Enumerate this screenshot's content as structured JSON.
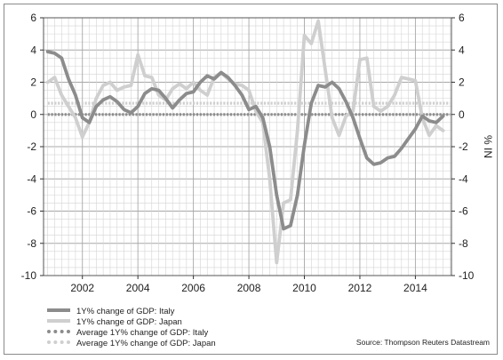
{
  "chart_data": {
    "type": "line",
    "title": "",
    "xlabel": "",
    "ylabel": "",
    "y2label": "% IN",
    "x_ticks": [
      2002,
      2004,
      2006,
      2008,
      2010,
      2012,
      2014
    ],
    "xlim": [
      2000.6,
      2015.3
    ],
    "ylim": [
      -10,
      6
    ],
    "y_ticks": [
      -10,
      -8,
      -6,
      -4,
      -2,
      0,
      2,
      4,
      6
    ],
    "grid": true,
    "legend_position": "bottom-left",
    "source": "Source: Thompson Reuters Datastream",
    "colors": {
      "italy": "#8c8c8c",
      "japan": "#cfcfcf"
    },
    "series": [
      {
        "name": "1Y% change of GDP: Italy",
        "style": "solid",
        "color": "#8c8c8c",
        "points": [
          [
            2000.75,
            3.9
          ],
          [
            2001.0,
            3.8
          ],
          [
            2001.25,
            3.5
          ],
          [
            2001.5,
            2.2
          ],
          [
            2001.75,
            1.2
          ],
          [
            2002.0,
            -0.2
          ],
          [
            2002.25,
            -0.5
          ],
          [
            2002.5,
            0.5
          ],
          [
            2002.75,
            0.9
          ],
          [
            2003.0,
            1.1
          ],
          [
            2003.25,
            0.8
          ],
          [
            2003.5,
            0.3
          ],
          [
            2003.75,
            0.1
          ],
          [
            2004.0,
            0.5
          ],
          [
            2004.25,
            1.3
          ],
          [
            2004.5,
            1.6
          ],
          [
            2004.75,
            1.5
          ],
          [
            2005.0,
            1.0
          ],
          [
            2005.25,
            0.4
          ],
          [
            2005.5,
            0.9
          ],
          [
            2005.75,
            1.3
          ],
          [
            2006.0,
            1.4
          ],
          [
            2006.25,
            2.0
          ],
          [
            2006.5,
            2.4
          ],
          [
            2006.75,
            2.2
          ],
          [
            2007.0,
            2.6
          ],
          [
            2007.25,
            2.3
          ],
          [
            2007.5,
            1.8
          ],
          [
            2007.75,
            1.2
          ],
          [
            2008.0,
            0.3
          ],
          [
            2008.25,
            0.5
          ],
          [
            2008.5,
            -0.2
          ],
          [
            2008.75,
            -2.0
          ],
          [
            2009.0,
            -5.0
          ],
          [
            2009.25,
            -7.1
          ],
          [
            2009.5,
            -6.9
          ],
          [
            2009.75,
            -5.0
          ],
          [
            2010.0,
            -1.9
          ],
          [
            2010.25,
            0.7
          ],
          [
            2010.5,
            1.8
          ],
          [
            2010.75,
            1.7
          ],
          [
            2011.0,
            2.0
          ],
          [
            2011.25,
            1.6
          ],
          [
            2011.5,
            0.8
          ],
          [
            2011.75,
            -0.2
          ],
          [
            2012.0,
            -1.5
          ],
          [
            2012.25,
            -2.7
          ],
          [
            2012.5,
            -3.1
          ],
          [
            2012.75,
            -3.0
          ],
          [
            2013.0,
            -2.7
          ],
          [
            2013.25,
            -2.6
          ],
          [
            2013.5,
            -2.1
          ],
          [
            2013.75,
            -1.5
          ],
          [
            2014.0,
            -0.9
          ],
          [
            2014.25,
            -0.1
          ],
          [
            2014.5,
            -0.4
          ],
          [
            2014.75,
            -0.5
          ],
          [
            2015.0,
            -0.1
          ]
        ]
      },
      {
        "name": "1Y% change of GDP: Japan",
        "style": "solid",
        "color": "#cfcfcf",
        "points": [
          [
            2000.75,
            2.0
          ],
          [
            2001.0,
            2.3
          ],
          [
            2001.25,
            1.2
          ],
          [
            2001.5,
            0.5
          ],
          [
            2001.75,
            -0.2
          ],
          [
            2002.0,
            -1.4
          ],
          [
            2002.25,
            -0.5
          ],
          [
            2002.5,
            1.0
          ],
          [
            2002.75,
            1.8
          ],
          [
            2003.0,
            2.0
          ],
          [
            2003.25,
            1.5
          ],
          [
            2003.5,
            1.7
          ],
          [
            2003.75,
            1.8
          ],
          [
            2004.0,
            3.7
          ],
          [
            2004.25,
            2.4
          ],
          [
            2004.5,
            2.3
          ],
          [
            2004.75,
            1.2
          ],
          [
            2005.0,
            0.9
          ],
          [
            2005.25,
            1.6
          ],
          [
            2005.5,
            1.9
          ],
          [
            2005.75,
            1.6
          ],
          [
            2006.0,
            2.0
          ],
          [
            2006.25,
            1.5
          ],
          [
            2006.5,
            1.2
          ],
          [
            2006.75,
            2.3
          ],
          [
            2007.0,
            2.6
          ],
          [
            2007.25,
            2.2
          ],
          [
            2007.5,
            1.9
          ],
          [
            2007.75,
            1.8
          ],
          [
            2008.0,
            1.5
          ],
          [
            2008.25,
            0.2
          ],
          [
            2008.5,
            -0.5
          ],
          [
            2008.75,
            -4.0
          ],
          [
            2009.0,
            -9.2
          ],
          [
            2009.25,
            -5.5
          ],
          [
            2009.5,
            -5.3
          ],
          [
            2009.75,
            -1.0
          ],
          [
            2010.0,
            4.9
          ],
          [
            2010.25,
            4.4
          ],
          [
            2010.5,
            5.8
          ],
          [
            2010.75,
            2.8
          ],
          [
            2011.0,
            -0.2
          ],
          [
            2011.25,
            -1.3
          ],
          [
            2011.5,
            -0.1
          ],
          [
            2011.75,
            0.2
          ],
          [
            2012.0,
            3.4
          ],
          [
            2012.25,
            3.5
          ],
          [
            2012.5,
            0.5
          ],
          [
            2012.75,
            0.2
          ],
          [
            2013.0,
            0.5
          ],
          [
            2013.25,
            1.2
          ],
          [
            2013.5,
            2.3
          ],
          [
            2013.75,
            2.2
          ],
          [
            2014.0,
            2.1
          ],
          [
            2014.25,
            -0.2
          ],
          [
            2014.5,
            -1.3
          ],
          [
            2014.75,
            -0.7
          ],
          [
            2015.0,
            -1.0
          ]
        ]
      },
      {
        "name": "Average 1Y% change of GDP: Italy",
        "style": "dotted",
        "color": "#8c8c8c",
        "points": [
          [
            2000.75,
            0.0
          ],
          [
            2015.25,
            0.0
          ]
        ]
      },
      {
        "name": "Average 1Y% change of GDP: Japan",
        "style": "dotted",
        "color": "#cfcfcf",
        "points": [
          [
            2000.75,
            0.7
          ],
          [
            2015.25,
            0.7
          ]
        ]
      }
    ]
  }
}
